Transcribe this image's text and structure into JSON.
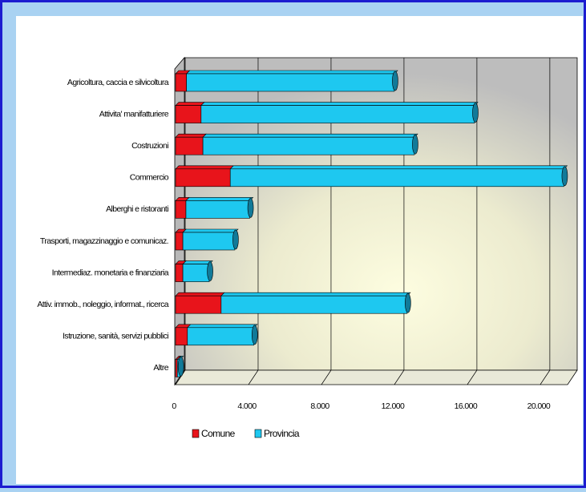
{
  "chart_data": {
    "type": "bar3d-stacked-horizontal",
    "categories": [
      "Agricoltura, caccia e silvicoltura",
      "Attivita' manifatturiere",
      "Costruzioni",
      "Commercio",
      "Alberghi e ristoranti",
      "Trasporti, magazzinaggio e comunicaz.",
      "Intermediaz. monetaria e finanziaria",
      "Attiv. immob., noleggio, informat., ricerca",
      "Istruzione, sanità, servizi pubblici",
      "Altre"
    ],
    "series": [
      {
        "name": "Comune",
        "color": "#e8141b",
        "values": [
          600,
          1400,
          1500,
          3000,
          570,
          400,
          400,
          2500,
          650,
          100
        ]
      },
      {
        "name": "Provincia",
        "color": "#1ec8f0",
        "values": [
          11400,
          15000,
          11600,
          18300,
          3500,
          2850,
          1450,
          10200,
          3650,
          150
        ]
      }
    ],
    "xlim": [
      0,
      21500
    ],
    "xticks": [
      0,
      {
        "value": 4000,
        "label": "4.000"
      },
      {
        "value": 8000,
        "label": "8.000"
      },
      {
        "value": 12000,
        "label": "12.000"
      },
      {
        "value": 16000,
        "label": "16.000"
      },
      {
        "value": 20000,
        "label": "20.000"
      }
    ],
    "grid": true
  }
}
